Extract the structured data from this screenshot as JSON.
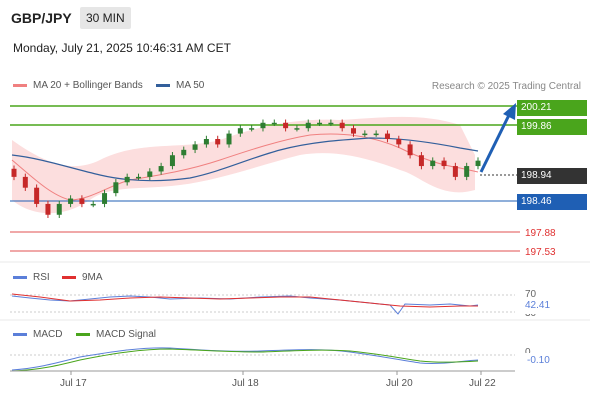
{
  "header": {
    "symbol": "GBP/JPY",
    "timeframe": "30 MIN",
    "datetime": "Monday, July 21, 2025 10:46:31 AM CET"
  },
  "legend": {
    "ma20_label": "MA 20 + Bollinger Bands",
    "ma50_label": "MA 50",
    "credit": "Research © 2025 Trading Central"
  },
  "levels": {
    "resistance_2": "200.21",
    "resistance_1": "199.86",
    "last_price": "198.94",
    "pivot": "198.46",
    "support_1": "197.88",
    "support_2": "197.53"
  },
  "rsi": {
    "label": "RSI",
    "ma_label": "9MA",
    "upper": "70",
    "value": "42.41",
    "lower": "30"
  },
  "macd": {
    "label": "MACD",
    "signal_label": "MACD Signal",
    "zero": "0",
    "value": "-0.10"
  },
  "xaxis": {
    "ticks": [
      "Jul 17",
      "Jul 18",
      "Jul 20",
      "Jul 22"
    ]
  },
  "colors": {
    "green": "#4aa51c",
    "blue": "#1f5fb4",
    "red": "#e05050",
    "ma20": "#f08080",
    "ma50": "#335f9b",
    "bb_fill": "#fcdede"
  },
  "chart_data": {
    "type": "candlestick",
    "instrument": "GBP/JPY",
    "interval": "30 MIN",
    "price_levels": [
      200.21,
      199.86,
      198.94,
      198.46,
      197.88,
      197.53
    ],
    "last_price": 198.94,
    "x_tick_labels": [
      "Jul 17",
      "Jul 18",
      "Jul 20",
      "Jul 22"
    ],
    "close_path": [
      198.9,
      198.7,
      198.4,
      198.2,
      198.4,
      198.5,
      198.4,
      198.4,
      198.6,
      198.8,
      198.9,
      198.9,
      199.0,
      199.1,
      199.3,
      199.4,
      199.5,
      199.6,
      199.5,
      199.7,
      199.8,
      199.8,
      199.9,
      199.9,
      199.8,
      199.8,
      199.9,
      199.9,
      199.9,
      199.8,
      199.7,
      199.7,
      199.7,
      199.6,
      199.5,
      199.3,
      199.1,
      199.2,
      199.1,
      198.9,
      199.1,
      199.2
    ],
    "indicators": {
      "rsi": {
        "value": 42.41,
        "levels": [
          70,
          30
        ]
      },
      "macd": {
        "value": -0.1,
        "zero": 0
      }
    }
  }
}
